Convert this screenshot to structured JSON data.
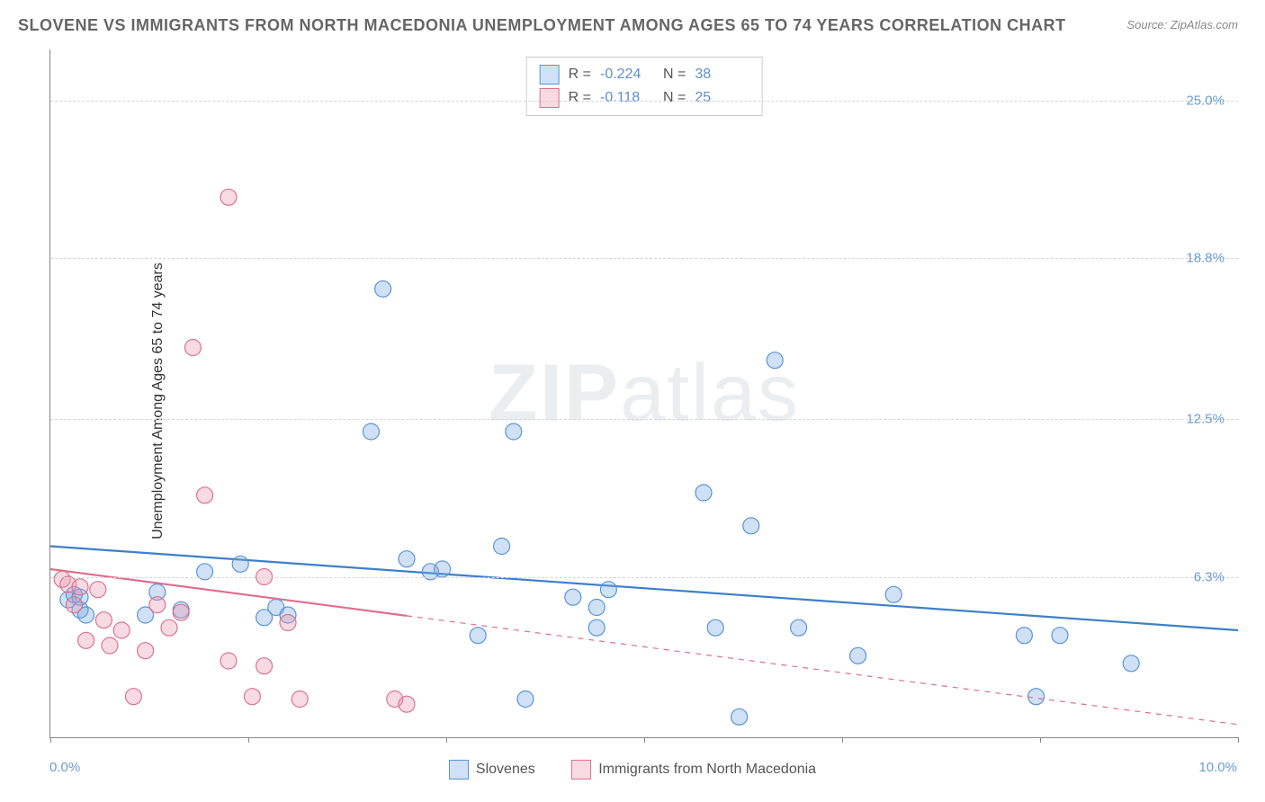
{
  "title": "SLOVENE VS IMMIGRANTS FROM NORTH MACEDONIA UNEMPLOYMENT AMONG AGES 65 TO 74 YEARS CORRELATION CHART",
  "source": "Source: ZipAtlas.com",
  "y_axis_label": "Unemployment Among Ages 65 to 74 years",
  "watermark_zip": "ZIP",
  "watermark_atlas": "atlas",
  "chart": {
    "type": "scatter",
    "xmin": 0.0,
    "xmax": 10.0,
    "ymin": 0.0,
    "ymax": 27.0,
    "x_tick_labels": [
      "0.0%",
      "10.0%"
    ],
    "x_minor_ticks": [
      0,
      1.67,
      3.33,
      5.0,
      6.67,
      8.33,
      10.0
    ],
    "y_gridlines": [
      6.3,
      12.5,
      18.8,
      25.0
    ],
    "y_tick_labels": [
      "6.3%",
      "12.5%",
      "18.8%",
      "25.0%"
    ],
    "background_color": "#ffffff",
    "grid_color": "#d5d5d5",
    "marker_radius": 9,
    "marker_stroke_width": 1.2,
    "line_width": 2.2,
    "series": [
      {
        "name": "Slovenes",
        "fill": "rgba(120,170,225,0.35)",
        "stroke": "#5a94d6",
        "line_color": "#3f7fc7",
        "R": "-0.224",
        "N": "38",
        "trend": {
          "x1": 0.0,
          "y1": 7.5,
          "x2": 10.0,
          "y2": 4.2,
          "solid_until": 10.0
        },
        "points": [
          [
            0.15,
            5.4
          ],
          [
            0.2,
            5.6
          ],
          [
            0.25,
            5.0
          ],
          [
            0.25,
            5.5
          ],
          [
            0.3,
            4.8
          ],
          [
            0.8,
            4.8
          ],
          [
            0.9,
            5.7
          ],
          [
            1.1,
            5.0
          ],
          [
            1.3,
            6.5
          ],
          [
            1.6,
            6.8
          ],
          [
            1.8,
            4.7
          ],
          [
            1.9,
            5.1
          ],
          [
            2.0,
            4.8
          ],
          [
            2.7,
            12.0
          ],
          [
            2.8,
            17.6
          ],
          [
            3.0,
            7.0
          ],
          [
            3.2,
            6.5
          ],
          [
            3.3,
            6.6
          ],
          [
            3.6,
            4.0
          ],
          [
            3.8,
            7.5
          ],
          [
            3.9,
            12.0
          ],
          [
            4.0,
            1.5
          ],
          [
            4.4,
            5.5
          ],
          [
            4.6,
            5.1
          ],
          [
            4.6,
            4.3
          ],
          [
            4.7,
            5.8
          ],
          [
            5.5,
            9.6
          ],
          [
            5.6,
            4.3
          ],
          [
            5.8,
            0.8
          ],
          [
            5.9,
            8.3
          ],
          [
            6.1,
            14.8
          ],
          [
            6.3,
            4.3
          ],
          [
            6.8,
            3.2
          ],
          [
            7.1,
            5.6
          ],
          [
            8.2,
            4.0
          ],
          [
            8.3,
            1.6
          ],
          [
            8.5,
            4.0
          ],
          [
            9.1,
            2.9
          ]
        ]
      },
      {
        "name": "Immigrants from North Macedonia",
        "fill": "rgba(235,150,175,0.35)",
        "stroke": "#d9738f",
        "line_color": "#de6e8c",
        "R": "-0.118",
        "N": "25",
        "trend": {
          "x1": 0.0,
          "y1": 6.6,
          "x2": 10.0,
          "y2": 0.5,
          "solid_until": 3.0
        },
        "points": [
          [
            0.1,
            6.2
          ],
          [
            0.15,
            6.0
          ],
          [
            0.2,
            5.2
          ],
          [
            0.25,
            5.9
          ],
          [
            0.3,
            3.8
          ],
          [
            0.4,
            5.8
          ],
          [
            0.45,
            4.6
          ],
          [
            0.5,
            3.6
          ],
          [
            0.6,
            4.2
          ],
          [
            0.7,
            1.6
          ],
          [
            0.8,
            3.4
          ],
          [
            0.9,
            5.2
          ],
          [
            1.0,
            4.3
          ],
          [
            1.1,
            4.9
          ],
          [
            1.2,
            15.3
          ],
          [
            1.3,
            9.5
          ],
          [
            1.5,
            3.0
          ],
          [
            1.5,
            21.2
          ],
          [
            1.7,
            1.6
          ],
          [
            1.8,
            2.8
          ],
          [
            1.8,
            6.3
          ],
          [
            2.0,
            4.5
          ],
          [
            2.1,
            1.5
          ],
          [
            2.9,
            1.5
          ],
          [
            3.0,
            1.3
          ]
        ]
      }
    ]
  },
  "legend_top": {
    "R_label": "R =",
    "N_label": "N ="
  },
  "legend_bottom": {
    "items": [
      "Slovenes",
      "Immigrants from North Macedonia"
    ]
  }
}
